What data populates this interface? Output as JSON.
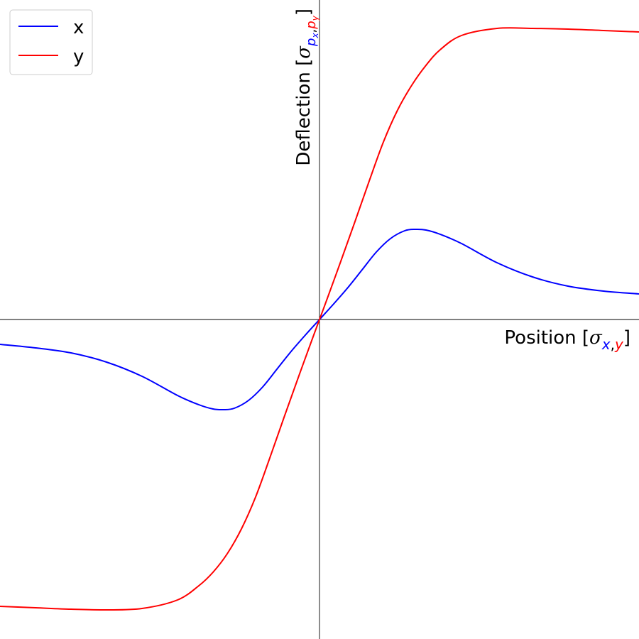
{
  "chart_data": {
    "type": "line",
    "xlabel": {
      "prefix": "Position [",
      "symbol": "σ",
      "sub1": "x",
      "sep": ",",
      "sub2": "y",
      "suffix": "]"
    },
    "ylabel": {
      "prefix": "Deflection [",
      "symbol": "σ",
      "sub1": "p",
      "sub1_sub": "x",
      "sep": ",",
      "sub2": "p",
      "sub2_sub": "y",
      "suffix": "]"
    },
    "xlim": [
      -4.5,
      4.5
    ],
    "ylim": [
      -4.5,
      4.5
    ],
    "grid": false,
    "legend_position": "top-left",
    "colors": {
      "x": "#0000ff",
      "y": "#ff0000"
    },
    "series": [
      {
        "name": "x",
        "color": "#0000ff",
        "x": [
          -4.5,
          -4.0,
          -3.5,
          -3.0,
          -2.5,
          -2.0,
          -1.7,
          -1.5,
          -1.35,
          -1.2,
          -1.0,
          -0.8,
          -0.6,
          -0.4,
          -0.2,
          0.0,
          0.2,
          0.4,
          0.6,
          0.8,
          1.0,
          1.2,
          1.35,
          1.5,
          1.7,
          2.0,
          2.5,
          3.0,
          3.5,
          4.0,
          4.5
        ],
        "y": [
          -0.35,
          -0.4,
          -0.47,
          -0.6,
          -0.8,
          -1.07,
          -1.2,
          -1.26,
          -1.27,
          -1.25,
          -1.14,
          -0.95,
          -0.7,
          -0.45,
          -0.22,
          0.0,
          0.22,
          0.45,
          0.7,
          0.95,
          1.14,
          1.25,
          1.27,
          1.26,
          1.2,
          1.07,
          0.8,
          0.6,
          0.47,
          0.4,
          0.36
        ]
      },
      {
        "name": "y",
        "color": "#ff0000",
        "x": [
          -4.5,
          -4.0,
          -3.5,
          -3.0,
          -2.5,
          -2.0,
          -1.7,
          -1.5,
          -1.3,
          -1.1,
          -0.9,
          -0.7,
          -0.5,
          -0.3,
          -0.1,
          0.0,
          0.1,
          0.3,
          0.5,
          0.7,
          0.9,
          1.1,
          1.3,
          1.5,
          1.7,
          2.0,
          2.5,
          3.0,
          3.5,
          4.0,
          4.5
        ],
        "y": [
          -4.04,
          -4.06,
          -4.08,
          -4.09,
          -4.07,
          -3.95,
          -3.75,
          -3.56,
          -3.3,
          -2.95,
          -2.5,
          -1.95,
          -1.38,
          -0.82,
          -0.27,
          0.0,
          0.27,
          0.82,
          1.38,
          1.95,
          2.5,
          2.95,
          3.3,
          3.58,
          3.8,
          4.0,
          4.1,
          4.1,
          4.09,
          4.07,
          4.05
        ]
      }
    ]
  }
}
